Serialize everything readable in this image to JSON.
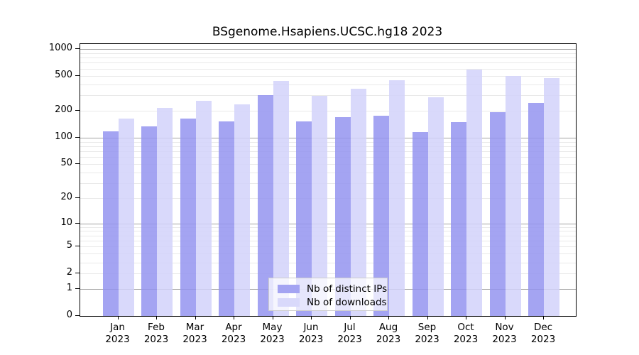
{
  "chart_data": {
    "type": "bar",
    "title": "BSgenome.Hsapiens.UCSC.hg18 2023",
    "categories": [
      "Jan",
      "Feb",
      "Mar",
      "Apr",
      "May",
      "Jun",
      "Jul",
      "Aug",
      "Sep",
      "Oct",
      "Nov",
      "Dec"
    ],
    "category_year": "2023",
    "series": [
      {
        "name": "Nb of distinct IPs",
        "color": "rgba(148,148,240,0.85)",
        "swatch_color": "#a4a4f2",
        "values": [
          118,
          133,
          165,
          153,
          300,
          152,
          172,
          177,
          115,
          149,
          193,
          246
        ]
      },
      {
        "name": "Nb of downloads",
        "color": "rgba(210,210,250,0.85)",
        "swatch_color": "#d9d9fb",
        "values": [
          165,
          218,
          262,
          238,
          440,
          298,
          354,
          443,
          284,
          590,
          500,
          471
        ]
      }
    ],
    "y_axis": {
      "scale": "log10(1+x)",
      "tick_values": [
        0,
        1,
        2,
        5,
        10,
        20,
        50,
        100,
        200,
        500,
        1000
      ],
      "range": [
        0,
        1000
      ]
    },
    "grid": {
      "minor_values": [
        2,
        3,
        4,
        5,
        6,
        7,
        8,
        9,
        20,
        30,
        40,
        50,
        60,
        70,
        80,
        90,
        200,
        300,
        400,
        500,
        600,
        700,
        800,
        900
      ],
      "major_values": [
        1,
        10,
        100,
        1000
      ],
      "minor_color": "#e9e9e9",
      "major_color": "#a3a3a3"
    },
    "legend_position": "bottom-center-inside",
    "axis_color": "#000000"
  }
}
